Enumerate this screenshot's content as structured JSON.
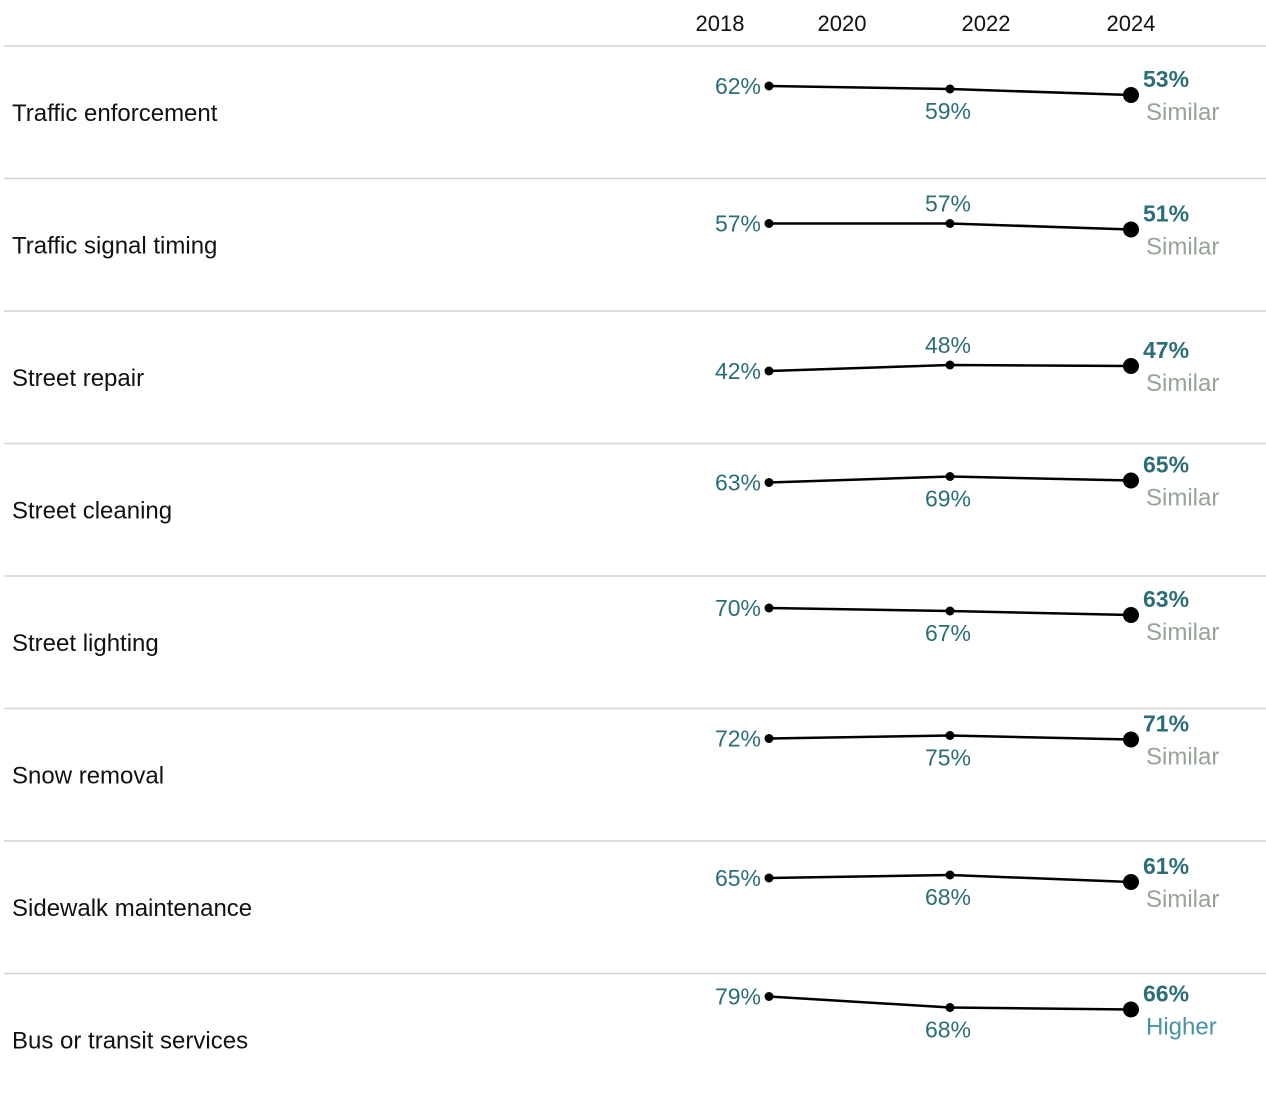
{
  "chart_data": {
    "type": "line",
    "x": [
      "2018",
      "2021",
      "2024"
    ],
    "axis_ticks": [
      "2018",
      "2020",
      "2022",
      "2024"
    ],
    "xlim": [
      2018,
      2024
    ],
    "colors": {
      "value": "#2b6e78",
      "line": "#000000",
      "similar": "#96a396",
      "higher": "#4a92a5",
      "divider": "#d3d3d3"
    },
    "rows": [
      {
        "label": "Traffic enforcement",
        "values": [
          62,
          59,
          53
        ],
        "value_labels": [
          "62%",
          "59%",
          "53%"
        ],
        "comparison": "Similar"
      },
      {
        "label": "Traffic signal timing",
        "values": [
          57,
          57,
          51
        ],
        "value_labels": [
          "57%",
          "57%",
          "51%"
        ],
        "comparison": "Similar"
      },
      {
        "label": "Street repair",
        "values": [
          42,
          48,
          47
        ],
        "value_labels": [
          "42%",
          "48%",
          "47%"
        ],
        "comparison": "Similar"
      },
      {
        "label": "Street cleaning",
        "values": [
          63,
          69,
          65
        ],
        "value_labels": [
          "63%",
          "69%",
          "65%"
        ],
        "comparison": "Similar"
      },
      {
        "label": "Street lighting",
        "values": [
          70,
          67,
          63
        ],
        "value_labels": [
          "70%",
          "67%",
          "63%"
        ],
        "comparison": "Similar"
      },
      {
        "label": "Snow removal",
        "values": [
          72,
          75,
          71
        ],
        "value_labels": [
          "72%",
          "75%",
          "71%"
        ],
        "comparison": "Similar"
      },
      {
        "label": "Sidewalk maintenance",
        "values": [
          65,
          68,
          61
        ],
        "value_labels": [
          "65%",
          "68%",
          "61%"
        ],
        "comparison": "Similar"
      },
      {
        "label": "Bus or transit services",
        "values": [
          79,
          68,
          66
        ],
        "value_labels": [
          "79%",
          "68%",
          "66%"
        ],
        "comparison": "Higher"
      }
    ]
  }
}
